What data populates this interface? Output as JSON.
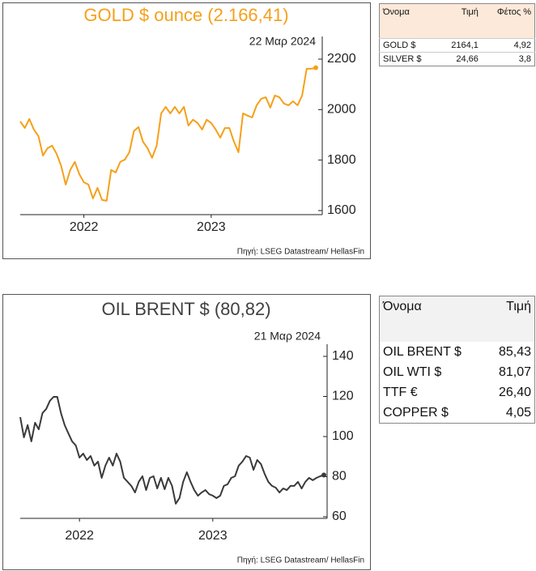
{
  "chart_data": [
    {
      "type": "line",
      "title": "GOLD $ ounce (2.166,41)",
      "title_color": "#f5a01a",
      "date": "22 Μαρ 2024",
      "source": "Πηγή: LSEG Datastream/ HellasFin",
      "series": [
        {
          "name": "GOLD $",
          "color": "#f5a01a",
          "values": [
            1953,
            1927,
            1963,
            1921,
            1895,
            1818,
            1847,
            1857,
            1825,
            1777,
            1703,
            1761,
            1793,
            1744,
            1712,
            1703,
            1648,
            1690,
            1642,
            1639,
            1761,
            1751,
            1793,
            1802,
            1831,
            1915,
            1931,
            1873,
            1847,
            1809,
            1857,
            1985,
            2011,
            1985,
            2011,
            1985,
            2011,
            1937,
            1960,
            1947,
            1921,
            1960,
            1947,
            1921,
            1889,
            1927,
            1927,
            1873,
            1831,
            1985,
            1976,
            1969,
            2017,
            2043,
            2049,
            2008,
            2056,
            2049,
            2024,
            2017,
            2033,
            2017,
            2056,
            2162,
            2162,
            2166
          ]
        }
      ],
      "ylim": [
        1600,
        2200
      ],
      "yticks": [
        1600,
        1800,
        2000,
        2200
      ],
      "xticks": [
        {
          "value": 14,
          "label": "2022"
        },
        {
          "value": 42,
          "label": "2023"
        }
      ],
      "end_marker": true
    },
    {
      "type": "line",
      "title": "OIL BRENT $ (80,82)",
      "title_color": "#404040",
      "date": "21 Μαρ 2024",
      "source": "Πηγή: LSEG Datastream/ HellasFin",
      "series": [
        {
          "name": "OIL BRENT $",
          "color": "#3a3a3a",
          "values": [
            109.7,
            99.6,
            105.7,
            97.6,
            106.9,
            103.6,
            111.7,
            113.7,
            117.8,
            119.8,
            119.8,
            111.7,
            105.7,
            101.6,
            97.6,
            95.6,
            89.5,
            91.5,
            88.3,
            90.3,
            85.5,
            87.5,
            79.4,
            85.5,
            89.5,
            85.5,
            91.5,
            87.5,
            79.4,
            77.4,
            75.4,
            72.1,
            77.4,
            80.2,
            73.3,
            79.4,
            80.2,
            74.1,
            79.4,
            73.7,
            79.4,
            75.4,
            66.5,
            69.3,
            77.4,
            82.2,
            77.4,
            73.3,
            70.5,
            72.1,
            73.3,
            71.3,
            70.5,
            69.3,
            70.5,
            75.4,
            76.2,
            79.4,
            80.2,
            85.5,
            87.5,
            90.3,
            89.5,
            83.4,
            88.3,
            86.3,
            81.4,
            77.4,
            75.4,
            74.5,
            72.1,
            74.1,
            73.3,
            75.4,
            75.4,
            77.4,
            74.1,
            77.4,
            79.4,
            78.2,
            79.4,
            80.2,
            80.8
          ]
        }
      ],
      "ylim": [
        60,
        140
      ],
      "yticks": [
        60,
        80,
        100,
        120,
        140
      ],
      "xticks": [
        {
          "value": 16,
          "label": "2022"
        },
        {
          "value": 52,
          "label": "2023"
        }
      ],
      "end_marker": true
    }
  ],
  "tables": [
    {
      "header": [
        "Όνομα",
        "Τιμή",
        "Φέτος %"
      ],
      "rows": [
        [
          "GOLD $",
          "2164,1",
          "4,92"
        ],
        [
          "SILVER $",
          "24,66",
          "3,8"
        ]
      ]
    },
    {
      "header": [
        "Όνομα",
        "Τιμή"
      ],
      "rows": [
        [
          "OIL BRENT $",
          "85,43"
        ],
        [
          "OIL WTI $",
          "81,07"
        ],
        [
          "TTF €",
          "26,40"
        ],
        [
          "COPPER $",
          "4,05"
        ]
      ]
    }
  ]
}
